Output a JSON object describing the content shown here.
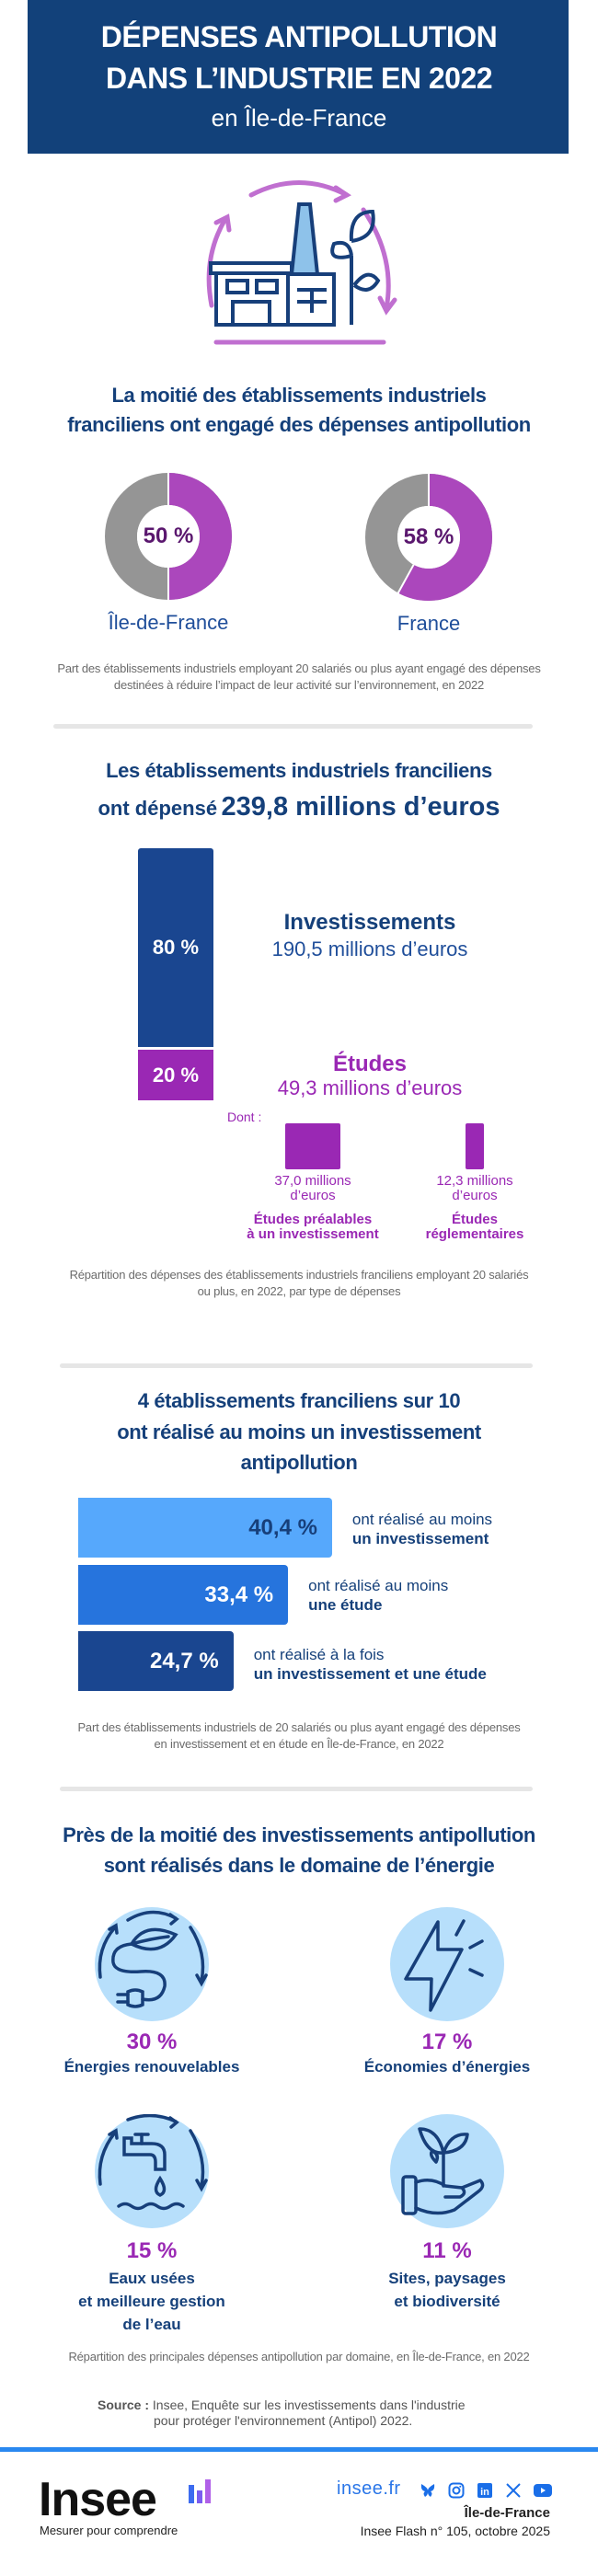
{
  "header": {
    "title_line1": "DÉPENSES ANTIPOLLUTION",
    "title_line2": "DANS L’INDUSTRIE EN 2022",
    "subtitle": "en Île-de-France"
  },
  "colors": {
    "navy": "#12417a",
    "purple": "#ab47bc",
    "grey": "#959595",
    "bar_blue": "#1a4690",
    "bar_purple": "#9a28b4",
    "light_blue": "#56a8fc",
    "mid_blue": "#2674dd",
    "icon_bg": "#b7dffb"
  },
  "section1": {
    "title_line1": "La moitié des établissements industriels",
    "title_line2": "franciliens ont engagé des dépenses antipollution",
    "donuts": [
      {
        "label": "Île-de-France",
        "value": 50,
        "value_label": "50 %"
      },
      {
        "label": "France",
        "value": 58,
        "value_label": "58 %"
      }
    ],
    "caption_line1": "Part des établissements industriels employant 20 salariés ou plus ayant engagé des dépenses",
    "caption_line2": "destinées à réduire l’impact de leur activité sur l’environnement, en 2022"
  },
  "section2": {
    "title_line1": "Les établissements industriels franciliens",
    "title_line2_prefix": "ont dépensé",
    "title_line2_amount": "239,8 millions d’euros",
    "stack": [
      {
        "share": 80,
        "share_label": "80 %",
        "name": "Investissements",
        "amount": "190,5 millions d’euros"
      },
      {
        "share": 20,
        "share_label": "20 %",
        "name": "Études",
        "amount": "49,3 millions d’euros"
      }
    ],
    "dont_label": "Dont :",
    "details": [
      {
        "value": 37.0,
        "amount_line1": "37,0 millions",
        "amount_line2": "d’euros",
        "label_line1": "Études préalables",
        "label_line2": "à un investissement"
      },
      {
        "value": 12.3,
        "amount_line1": "12,3 millions",
        "amount_line2": "d’euros",
        "label_line1": "Études",
        "label_line2": "réglementaires"
      }
    ],
    "caption_line1": "Répartition des dépenses des établissements industriels franciliens employant 20 salariés",
    "caption_line2": "ou plus, en 2022, par type de dépenses"
  },
  "section3": {
    "title_line1": "4 établissements franciliens sur 10",
    "title_line2": "ont réalisé au moins un investissement",
    "title_line3": "antipollution",
    "bars": [
      {
        "value": 40.4,
        "value_label": "40,4 %",
        "text_line1": "ont réalisé au moins",
        "text_line2": "un investissement"
      },
      {
        "value": 33.4,
        "value_label": "33,4 %",
        "text_line1": "ont réalisé au moins",
        "text_line2": "une étude"
      },
      {
        "value": 24.7,
        "value_label": "24,7 %",
        "text_line1": "ont réalisé à la fois",
        "text_line2": "un investissement et une étude"
      }
    ],
    "caption_line1": "Part des établissements industriels de 20 salariés ou plus ayant engagé des dépenses",
    "caption_line2": "en investissement et en étude en Île-de-France, en 2022"
  },
  "section4": {
    "title_line1": "Près de la moitié des investissements antipollution",
    "title_line2": "sont réalisés dans le domaine de l’énergie",
    "domains": [
      {
        "value": 30,
        "value_label": "30 %",
        "label_lines": [
          "Énergies renouvelables"
        ],
        "icon": "renewable-energy-icon"
      },
      {
        "value": 17,
        "value_label": "17 %",
        "label_lines": [
          "Économies d’énergies"
        ],
        "icon": "lightning-icon"
      },
      {
        "value": 15,
        "value_label": "15 %",
        "label_lines": [
          "Eaux usées",
          "et meilleure gestion",
          "de l’eau"
        ],
        "icon": "water-tap-icon"
      },
      {
        "value": 11,
        "value_label": "11 %",
        "label_lines": [
          "Sites, paysages",
          "et biodiversité"
        ],
        "icon": "hand-plant-icon"
      }
    ],
    "caption": "Répartition des principales dépenses antipollution par domaine, en Île-de-France, en 2022"
  },
  "source": {
    "label": "Source :",
    "line1": "Insee, Enquête sur les investissements dans l'industrie",
    "line2": "pour protéger l'environnement (Antipol) 2022."
  },
  "footer": {
    "logo_text": "Insee",
    "slogan": "Mesurer pour comprendre",
    "site": "insee.fr",
    "social": [
      "bluesky-icon",
      "instagram-icon",
      "linkedin-icon",
      "x-icon",
      "youtube-icon"
    ],
    "region": "Île-de-France",
    "publication": "Insee Flash n° 105, octobre 2025"
  }
}
